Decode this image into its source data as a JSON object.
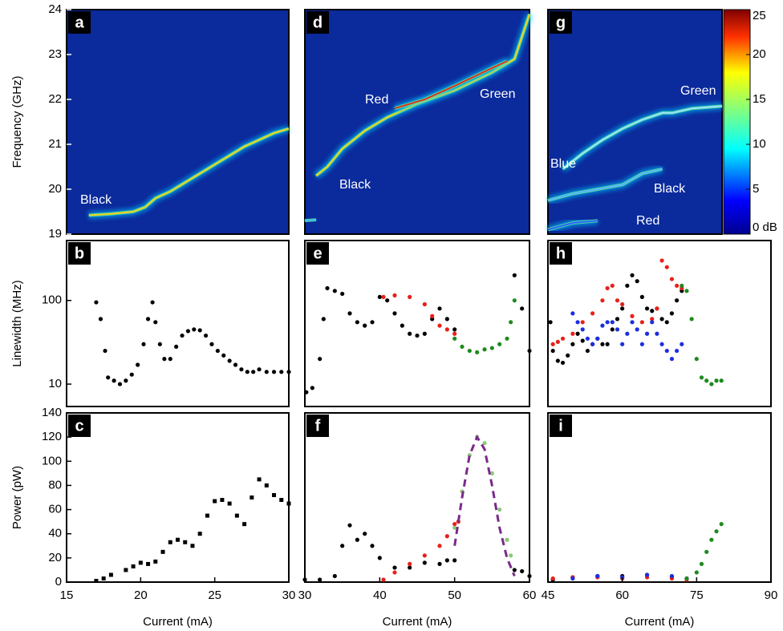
{
  "chart_data": [
    {
      "type": "spectrogram",
      "label": "a",
      "ylabel": "Frequency (GHz)",
      "xlim": [
        15,
        30
      ],
      "ylim": [
        19,
        24
      ],
      "yticks": [
        19,
        20,
        21,
        22,
        23,
        24
      ],
      "annotations": [
        "Black"
      ],
      "series": [
        {
          "color": "#f0d020",
          "x": [
            16.5,
            18,
            19.5,
            20.3,
            21,
            22,
            23,
            24,
            25,
            26,
            27,
            28,
            29,
            30
          ],
          "values": [
            19.42,
            19.45,
            19.5,
            19.6,
            19.8,
            19.95,
            20.15,
            20.35,
            20.55,
            20.75,
            20.95,
            21.1,
            21.25,
            21.35
          ]
        }
      ]
    },
    {
      "type": "scatter",
      "label": "b",
      "ylabel": "Linewidth (MHz)",
      "ylog": true,
      "xlim": [
        15,
        30
      ],
      "ylim": [
        5.4,
        520
      ],
      "yticks": [
        10,
        100
      ],
      "series": [
        {
          "color": "#000000",
          "x": [
            17,
            17.3,
            17.6,
            17.8,
            18.2,
            18.6,
            19,
            19.4,
            19.8,
            20.2,
            20.5,
            20.8,
            21,
            21.3,
            21.6,
            22,
            22.4,
            22.8,
            23.2,
            23.6,
            24,
            24.4,
            24.8,
            25.2,
            25.6,
            26,
            26.4,
            26.8,
            27.2,
            27.6,
            28,
            28.5,
            29,
            29.5,
            30
          ],
          "values": [
            95,
            60,
            25,
            12,
            11,
            10,
            11,
            13,
            17,
            30,
            60,
            95,
            55,
            30,
            20,
            20,
            28,
            38,
            43,
            45,
            44,
            38,
            30,
            25,
            22,
            19,
            17,
            15,
            14,
            14,
            15,
            14,
            14,
            14,
            14
          ]
        }
      ]
    },
    {
      "type": "scatter",
      "label": "c",
      "ylabel": "Power (pW)",
      "xlabel": "Current (mA)",
      "marker": "square",
      "xlim": [
        15,
        30
      ],
      "ylim": [
        0,
        140
      ],
      "xticks": [
        15,
        20,
        25,
        30
      ],
      "yticks": [
        0,
        20,
        40,
        60,
        80,
        100,
        120,
        140
      ],
      "series": [
        {
          "color": "#000000",
          "x": [
            17,
            17.5,
            18,
            19,
            19.5,
            20,
            20.5,
            21,
            21.5,
            22,
            22.5,
            23,
            23.5,
            24,
            24.5,
            25,
            25.5,
            26,
            26.5,
            27,
            27.5,
            28,
            28.5,
            29,
            29.5,
            30
          ],
          "values": [
            1,
            3,
            6,
            10,
            13,
            16,
            15,
            17,
            25,
            33,
            35,
            33,
            30,
            40,
            55,
            67,
            68,
            65,
            55,
            48,
            70,
            85,
            80,
            72,
            68,
            65
          ]
        }
      ]
    },
    {
      "type": "spectrogram",
      "label": "d",
      "xlim": [
        30,
        60
      ],
      "ylim": [
        19,
        24
      ],
      "annotations": [
        "Red",
        "Green",
        "Black"
      ],
      "series": [
        {
          "color": "#f0d020",
          "x": [
            31.5,
            33,
            35,
            38,
            41,
            45,
            50,
            55,
            58,
            59,
            60
          ],
          "values": [
            20.3,
            20.5,
            20.9,
            21.3,
            21.6,
            21.9,
            22.2,
            22.6,
            22.9,
            23.4,
            23.9
          ]
        },
        {
          "color": "#e03020",
          "x": [
            42,
            46,
            50,
            55,
            57
          ],
          "values": [
            21.8,
            22.0,
            22.3,
            22.7,
            22.85
          ]
        },
        {
          "color": "#40c0ff",
          "x": [
            30,
            31.5
          ],
          "values": [
            19.3,
            19.32
          ]
        }
      ]
    },
    {
      "type": "scatter",
      "label": "e",
      "ylog": true,
      "xlim": [
        30,
        60
      ],
      "ylim": [
        5.4,
        520
      ],
      "series": [
        {
          "color": "#000000",
          "x": [
            30.2,
            31,
            32,
            32.5,
            33,
            34,
            35,
            36,
            37,
            38,
            39,
            40,
            41,
            42,
            43,
            44,
            45,
            46,
            47,
            48,
            49,
            50,
            null,
            58,
            59,
            60
          ],
          "values": [
            8,
            9,
            20,
            60,
            140,
            130,
            120,
            70,
            55,
            50,
            55,
            110,
            100,
            70,
            50,
            40,
            38,
            40,
            60,
            80,
            60,
            45,
            null,
            200,
            80,
            25
          ]
        },
        {
          "color": "#e8201b",
          "x": [
            40.5,
            42,
            44,
            46,
            47,
            48,
            49,
            50
          ],
          "values": [
            110,
            115,
            110,
            90,
            65,
            50,
            45,
            40
          ]
        },
        {
          "color": "#1e8a1e",
          "x": [
            50,
            51,
            52,
            53,
            54,
            55,
            56,
            57,
            57.5,
            58
          ],
          "values": [
            35,
            28,
            25,
            24,
            26,
            27,
            30,
            35,
            55,
            100
          ]
        }
      ]
    },
    {
      "type": "scatter",
      "label": "f",
      "xlabel": "Current (mA)",
      "xlim": [
        30,
        60
      ],
      "ylim": [
        0,
        140
      ],
      "xticks": [
        30,
        40,
        50,
        60
      ],
      "series": [
        {
          "color": "#000000",
          "x": [
            30,
            32,
            34,
            35,
            36,
            37,
            38,
            39,
            40,
            42,
            44,
            46,
            48,
            49,
            50,
            null,
            58,
            59,
            60
          ],
          "values": [
            2,
            2,
            5,
            30,
            47,
            35,
            40,
            30,
            20,
            12,
            12,
            16,
            15,
            18,
            18,
            null,
            10,
            9,
            5
          ]
        },
        {
          "color": "#e8201b",
          "x": [
            40.5,
            42,
            44,
            46,
            48,
            49,
            50,
            50.5
          ],
          "values": [
            2,
            8,
            15,
            22,
            30,
            38,
            48,
            50
          ]
        },
        {
          "color": "#8cc87a",
          "x": [
            50,
            51,
            52,
            53,
            54,
            55,
            56,
            57,
            57.5
          ],
          "values": [
            45,
            75,
            105,
            120,
            115,
            90,
            60,
            35,
            22
          ]
        },
        {
          "color": "#7a2a8a",
          "style": "dashed",
          "x": [
            50,
            51,
            52,
            53,
            54,
            55,
            56,
            57,
            58
          ],
          "values": [
            30,
            70,
            105,
            120,
            110,
            80,
            45,
            20,
            5
          ]
        }
      ]
    },
    {
      "type": "spectrogram",
      "label": "g",
      "xlim": [
        45,
        80
      ],
      "ylim": [
        19,
        24
      ],
      "annotations": [
        "Green",
        "Blue",
        "Black",
        "Red"
      ],
      "colorbar": {
        "lim": [
          0,
          25
        ],
        "ticks": [
          {
            "value": 0,
            "label": "0 dB"
          },
          5,
          10,
          15,
          20,
          25
        ]
      },
      "series": [
        {
          "color": "#a0e0ff",
          "x": [
            48,
            52,
            56,
            60,
            64,
            68,
            70,
            74,
            80
          ],
          "values": [
            20.45,
            20.8,
            21.1,
            21.35,
            21.55,
            21.7,
            21.7,
            21.8,
            21.85
          ]
        },
        {
          "color": "#60b0ff",
          "x": [
            45,
            50,
            55,
            60,
            64,
            68
          ],
          "values": [
            19.75,
            19.9,
            20.0,
            20.1,
            20.35,
            20.45
          ]
        },
        {
          "color": "#3060ff",
          "x": [
            45,
            50,
            55
          ],
          "values": [
            19.1,
            19.25,
            19.3
          ]
        }
      ]
    },
    {
      "type": "scatter",
      "label": "h",
      "ylog": true,
      "xlim": [
        45,
        90
      ],
      "ylim": [
        5.4,
        520
      ],
      "series": [
        {
          "color": "#000000",
          "x": [
            45.5,
            46,
            47,
            48,
            49,
            50,
            51,
            52,
            53,
            54,
            55,
            56,
            57,
            58,
            59,
            60,
            61,
            62,
            63,
            64,
            65,
            66,
            67,
            68,
            69,
            70,
            71,
            72
          ],
          "values": [
            55,
            25,
            19,
            18,
            22,
            30,
            40,
            33,
            25,
            30,
            35,
            30,
            30,
            45,
            60,
            80,
            150,
            200,
            170,
            110,
            80,
            75,
            80,
            60,
            55,
            70,
            100,
            130
          ]
        },
        {
          "color": "#e8201b",
          "x": [
            46,
            47,
            48,
            50,
            52,
            54,
            56,
            57,
            58,
            59,
            60,
            62,
            64,
            66,
            67,
            68,
            69,
            70,
            71,
            72
          ],
          "values": [
            30,
            32,
            35,
            40,
            55,
            70,
            100,
            140,
            150,
            100,
            90,
            65,
            55,
            60,
            80,
            300,
            250,
            180,
            150,
            140
          ]
        },
        {
          "color": "#1c2ee0",
          "x": [
            50,
            51,
            52,
            53,
            54,
            55,
            56,
            57,
            58,
            59,
            60,
            61,
            62,
            63,
            64,
            65,
            66,
            67,
            68,
            69,
            70,
            71,
            72
          ],
          "values": [
            70,
            55,
            45,
            35,
            30,
            35,
            50,
            55,
            55,
            45,
            30,
            40,
            55,
            45,
            30,
            40,
            55,
            40,
            30,
            25,
            20,
            25,
            30
          ]
        },
        {
          "color": "#1e8a1e",
          "x": [
            72,
            73,
            74,
            75,
            76,
            77,
            78,
            79,
            80
          ],
          "values": [
            150,
            130,
            60,
            20,
            12,
            11,
            10,
            11,
            11
          ]
        }
      ]
    },
    {
      "type": "scatter",
      "label": "i",
      "xlabel": "Current (mA)",
      "xlim": [
        45,
        90
      ],
      "ylim": [
        0,
        140
      ],
      "xticks": [
        45,
        60,
        75,
        90
      ],
      "series": [
        {
          "color": "#000000",
          "x": [
            46,
            50,
            55,
            60,
            65,
            70,
            73
          ],
          "values": [
            2,
            4,
            5,
            5,
            6,
            4,
            3
          ]
        },
        {
          "color": "#e8201b",
          "x": [
            46,
            50,
            55,
            60,
            65,
            70,
            73
          ],
          "values": [
            3,
            4,
            4,
            3,
            4,
            3,
            2
          ]
        },
        {
          "color": "#1c2ee0",
          "x": [
            50,
            55,
            60,
            65,
            70,
            73
          ],
          "values": [
            3,
            5,
            4,
            6,
            5,
            3
          ]
        },
        {
          "color": "#1e8a1e",
          "x": [
            73,
            75,
            76,
            77,
            78,
            79,
            80
          ],
          "values": [
            3,
            8,
            15,
            25,
            35,
            42,
            48
          ]
        }
      ]
    }
  ]
}
